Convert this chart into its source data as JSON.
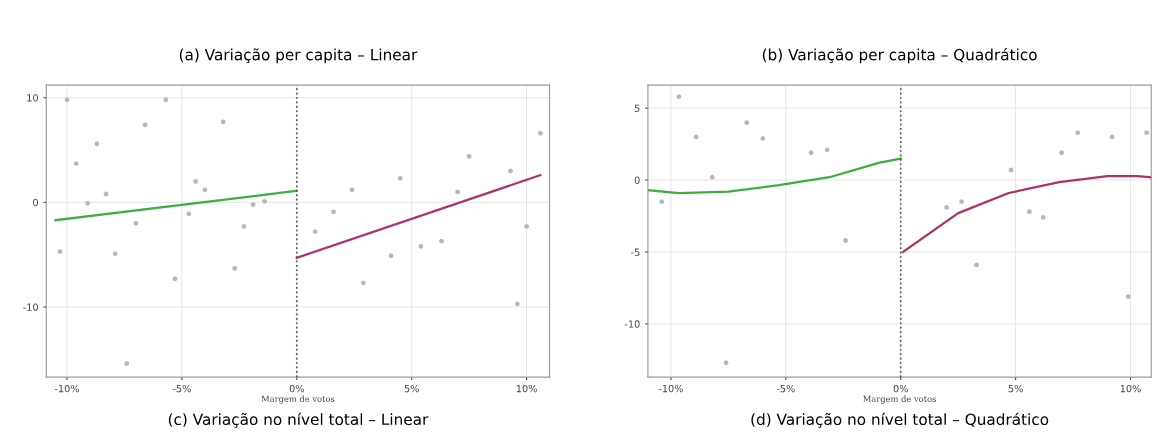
{
  "chart_data": [
    {
      "type": "line",
      "title": "(a) Variação per capita – Linear",
      "xlabel": "Margem de votos",
      "annotations": [
        "(c) Variação no nível total – Linear"
      ],
      "xlim": [
        -10.9,
        11.0
      ],
      "ylim": [
        -16.7,
        11.2
      ],
      "xticks": [
        {
          "value": -10,
          "label": "-10%"
        },
        {
          "value": -5,
          "label": "-5%"
        },
        {
          "value": 0,
          "label": "0%"
        },
        {
          "value": 5,
          "label": "5%"
        },
        {
          "value": 10,
          "label": "10%"
        }
      ],
      "yticks": [
        -10,
        0,
        10
      ],
      "grid": true,
      "legend": false,
      "ref_lines": [
        {
          "axis": "x",
          "value": 0,
          "color": "#555555",
          "line_style": "dotted"
        }
      ],
      "series": [
        {
          "type": "scatter",
          "color": "#b8b8b8",
          "x": [
            -10.0,
            -5.7,
            -8.7,
            -9.6,
            -6.6,
            -3.2,
            -4.4,
            -4.0,
            -9.1,
            -8.3,
            -1.9,
            -1.4,
            -7.0,
            -4.7,
            -2.3,
            -10.3,
            -7.9,
            -5.3,
            -2.7,
            -7.4,
            10.6,
            7.5,
            9.3,
            4.5,
            2.4,
            1.6,
            7.0,
            0.8,
            10.0,
            5.4,
            6.3,
            4.1,
            2.9,
            9.6
          ],
          "values": [
            9.8,
            9.8,
            5.6,
            3.7,
            7.4,
            7.7,
            2.0,
            1.2,
            -0.1,
            0.8,
            -0.2,
            0.1,
            -2.0,
            -1.1,
            -2.3,
            -4.7,
            -4.9,
            -7.3,
            -6.3,
            -15.4,
            6.6,
            4.4,
            3.0,
            2.3,
            1.2,
            -0.9,
            1.0,
            -2.8,
            -2.3,
            -4.2,
            -3.7,
            -5.1,
            -7.7,
            -9.7
          ]
        },
        {
          "color": "#3fae3f",
          "x": [
            -10.5,
            0
          ],
          "values": [
            -1.7,
            1.1
          ]
        },
        {
          "color": "#b03068",
          "x": [
            0,
            10.6
          ],
          "values": [
            -5.3,
            2.6
          ]
        }
      ]
    },
    {
      "type": "line",
      "title": "(b) Variação per capita – Quadrático",
      "xlabel": "Margem de votos",
      "annotations": [
        "(d) Variação no nível total – Quadrático"
      ],
      "xlim": [
        -11.0,
        10.9
      ],
      "ylim": [
        -13.7,
        6.6
      ],
      "xticks": [
        {
          "value": -10,
          "label": "-10%"
        },
        {
          "value": -5,
          "label": "-5%"
        },
        {
          "value": 0,
          "label": "0%"
        },
        {
          "value": 5,
          "label": "5%"
        },
        {
          "value": 10,
          "label": "10%"
        }
      ],
      "yticks": [
        -10,
        -5,
        0,
        5
      ],
      "grid": true,
      "legend": false,
      "ref_lines": [
        {
          "axis": "x",
          "value": 0,
          "color": "#555555",
          "line_style": "dotted"
        }
      ],
      "series": [
        {
          "type": "scatter",
          "color": "#b8b8b8",
          "x": [
            -9.65,
            -8.9,
            -6.7,
            -6.0,
            -3.9,
            -3.2,
            -8.2,
            -10.4,
            -2.4,
            -7.6,
            7.7,
            9.2,
            10.7,
            7.0,
            4.8,
            5.6,
            6.2,
            2.0,
            2.65,
            3.3,
            9.9
          ],
          "values": [
            5.8,
            3.0,
            4.0,
            2.9,
            1.9,
            2.1,
            0.2,
            -1.5,
            -4.2,
            -12.7,
            3.3,
            3.0,
            3.3,
            1.9,
            0.7,
            -2.2,
            -2.6,
            -1.9,
            -1.5,
            -5.9,
            -8.1
          ]
        },
        {
          "color": "#3fae3f",
          "x": [
            -11.0,
            -9.65,
            -7.5,
            -5.3,
            -3.1,
            -0.96,
            0
          ],
          "values": [
            -0.7,
            -0.9,
            -0.8,
            -0.35,
            0.2,
            1.2,
            1.5
          ]
        },
        {
          "color": "#b03068",
          "x": [
            0.1,
            2.5,
            4.7,
            6.9,
            9.0,
            10.3,
            10.9
          ],
          "values": [
            -5.0,
            -2.3,
            -0.9,
            -0.14,
            0.28,
            0.28,
            0.2
          ]
        }
      ]
    }
  ]
}
